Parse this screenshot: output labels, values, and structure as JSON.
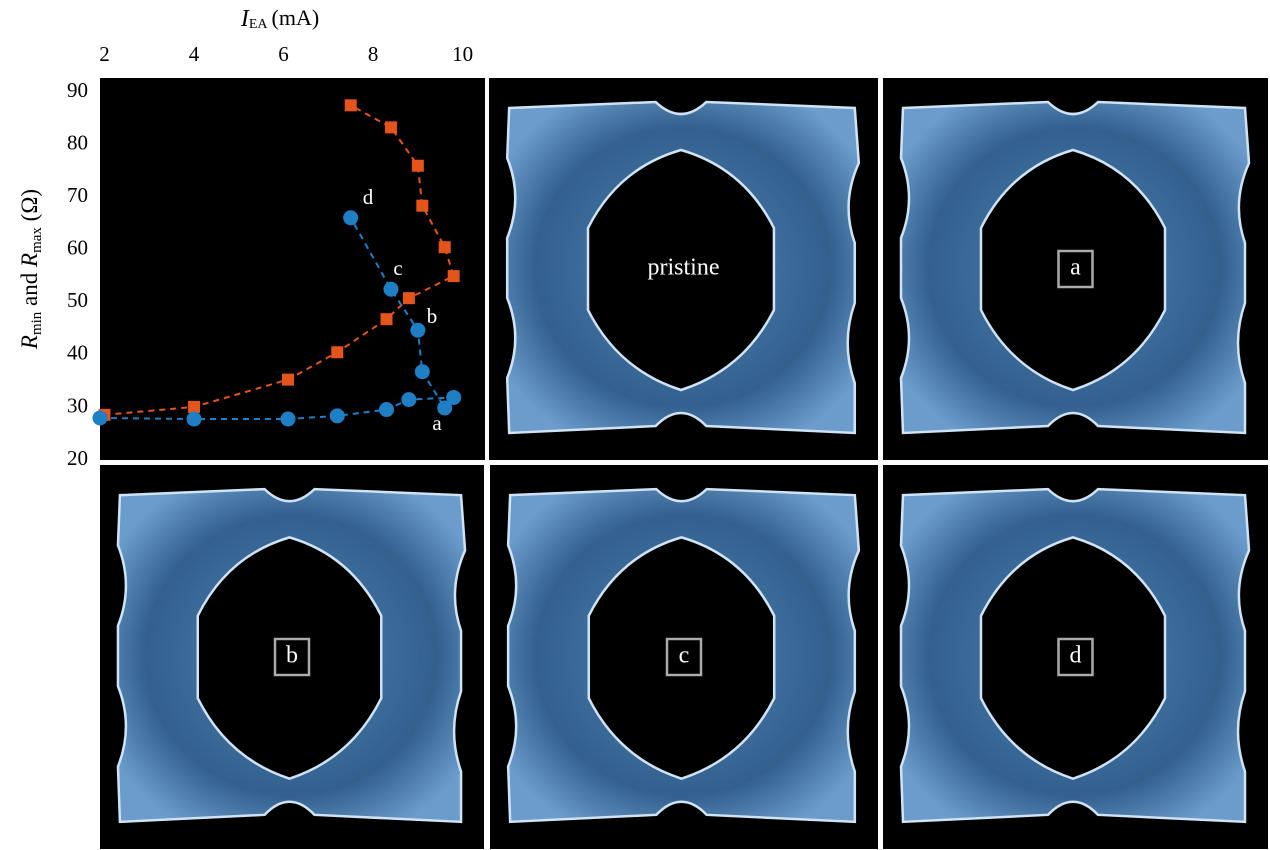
{
  "chart_data": {
    "type": "line",
    "xlabel": {
      "main": "I",
      "sub": "EA",
      "unit": "(mA)"
    },
    "ylabel": [
      {
        "text": "R",
        "italic": true
      },
      {
        "text": "min",
        "sub": true
      },
      {
        "text": " and "
      },
      {
        "text": "R",
        "italic": true
      },
      {
        "text": "max",
        "sub": true
      },
      {
        "text": " (Ω)"
      }
    ],
    "xlim": [
      1.9,
      10.5
    ],
    "xticks": [
      2,
      4,
      6,
      8,
      10
    ],
    "ylim": [
      20,
      92.7
    ],
    "yticks": [
      20,
      30,
      40,
      50,
      60,
      70,
      80,
      90
    ],
    "series": [
      {
        "color": "#e5541b",
        "marker": "square",
        "x": [
          2.0,
          4.0,
          6.1,
          7.2,
          8.3,
          8.8,
          9.8,
          9.6,
          9.1,
          9.0,
          8.4,
          7.5
        ],
        "values": [
          28.6,
          30.1,
          35.3,
          40.5,
          46.8,
          50.8,
          55.0,
          60.5,
          68.4,
          76.0,
          83.3,
          87.5
        ]
      },
      {
        "color": "#1f7fc4",
        "marker": "circle",
        "x": [
          1.9,
          4.0,
          6.1,
          7.2,
          8.3,
          8.8,
          9.8,
          9.6,
          9.1,
          9.0,
          8.4,
          7.5
        ],
        "values": [
          28.0,
          27.8,
          27.8,
          28.4,
          29.6,
          31.5,
          31.9,
          29.9,
          36.8,
          44.7,
          52.5,
          66.1
        ]
      }
    ],
    "annotations": [
      "d",
      "c",
      "b",
      "a"
    ]
  },
  "images": [
    {
      "label": "pristine"
    },
    {
      "label": "a"
    },
    {
      "label": "b"
    },
    {
      "label": "c"
    },
    {
      "label": "d"
    }
  ]
}
